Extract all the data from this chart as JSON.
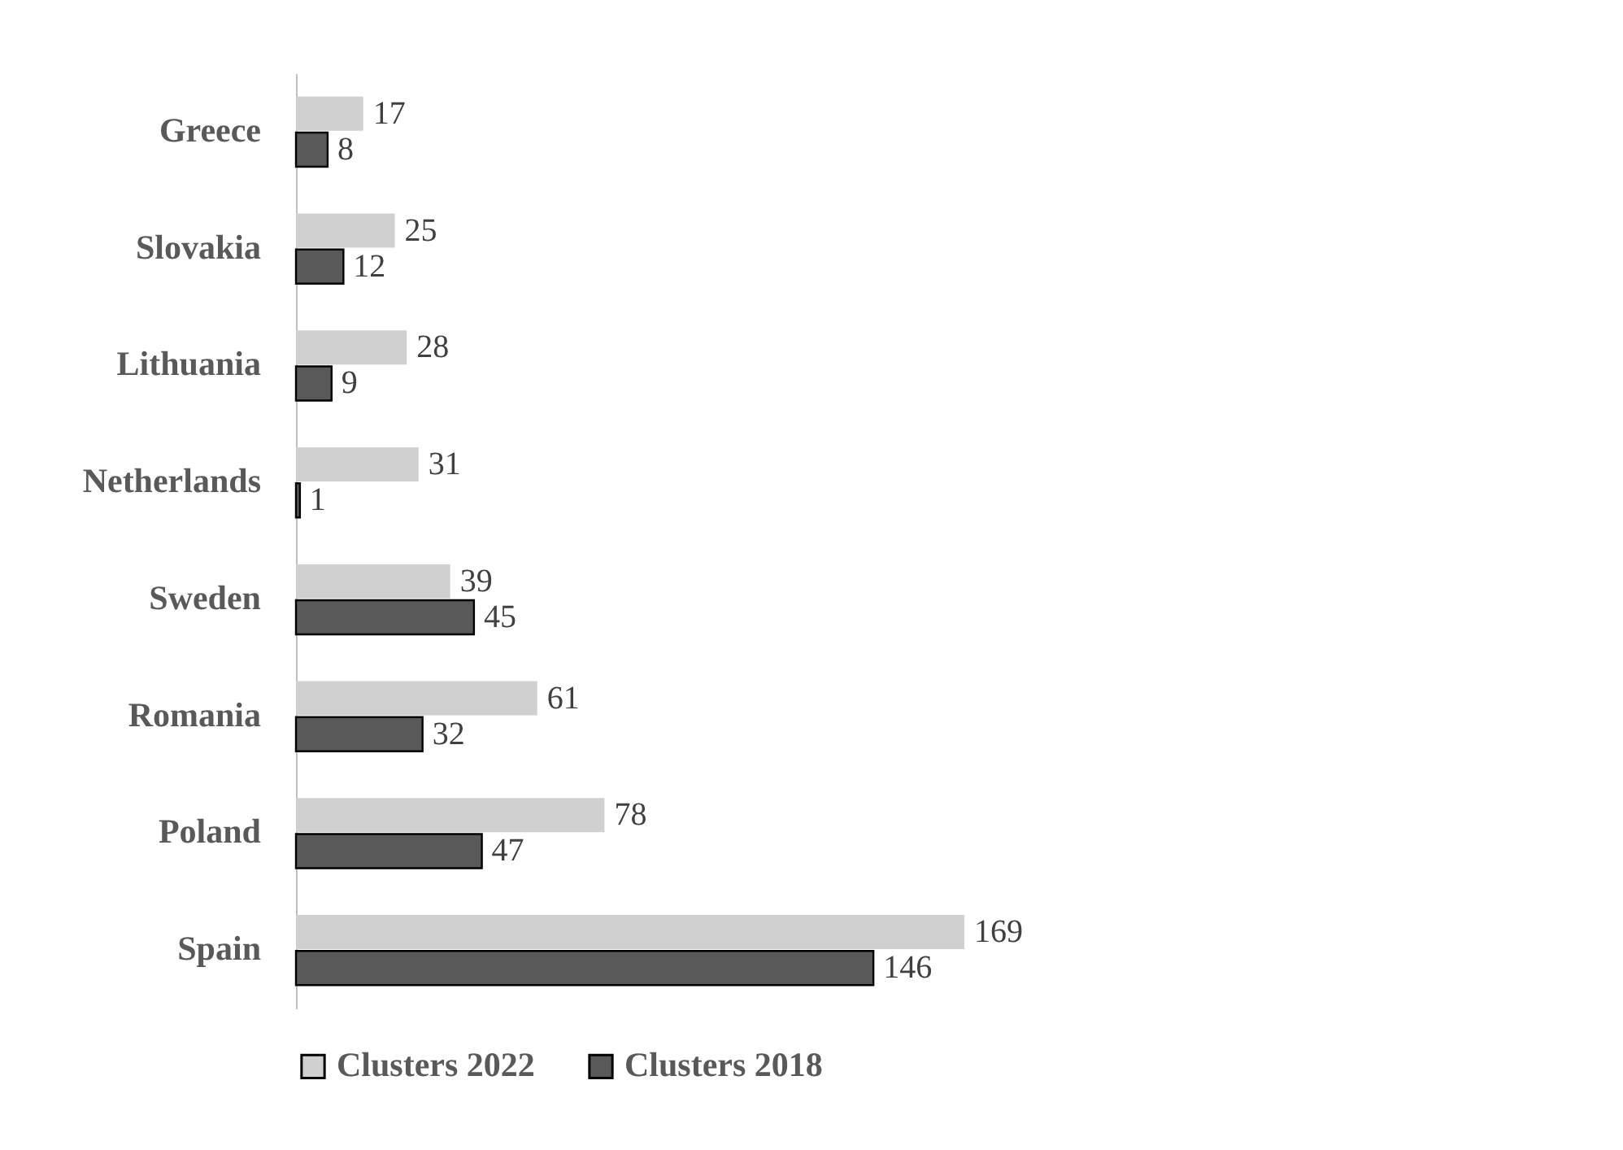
{
  "chart_data": {
    "type": "bar",
    "orientation": "horizontal",
    "data_labels": true,
    "legend": "bottom",
    "tick_labels": "y",
    "categories": [
      "Greece",
      "Slovakia",
      "Lithuania",
      "Netherlands",
      "Sweden",
      "Romania",
      "Poland",
      "Spain"
    ],
    "series": [
      {
        "name": "Clusters 2022",
        "color": "#d0d0d0",
        "values": [
          17,
          25,
          28,
          31,
          39,
          61,
          78,
          169
        ]
      },
      {
        "name": "Clusters 2018",
        "color": "#595959",
        "values": [
          8,
          12,
          9,
          1,
          45,
          32,
          47,
          146
        ]
      }
    ]
  }
}
